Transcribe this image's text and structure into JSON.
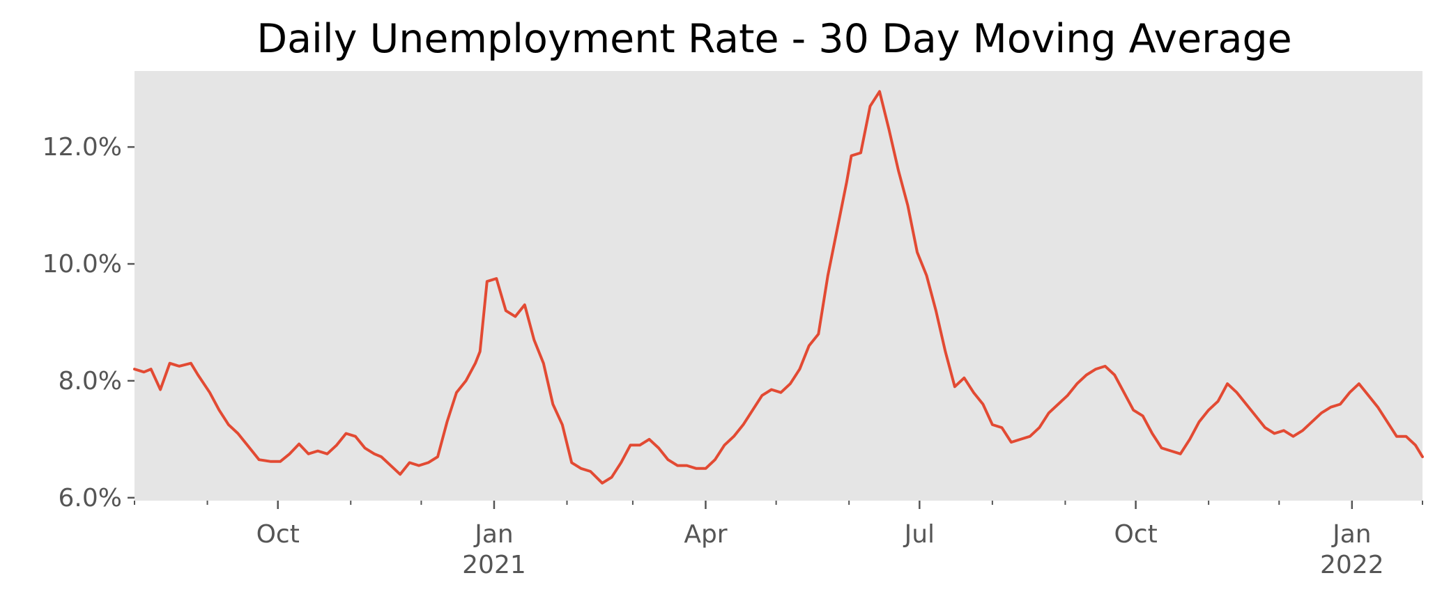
{
  "chart_data": {
    "type": "line",
    "title": "Daily Unemployment Rate - 30 Day Moving Average",
    "xlabel": "",
    "ylabel": "",
    "y_tick_labels": [
      "6.0%",
      "8.0%",
      "10.0%",
      "12.0%"
    ],
    "y_tick_values": [
      6.0,
      8.0,
      10.0,
      12.0
    ],
    "ylim": [
      5.95,
      13.3
    ],
    "xlim": [
      "2020-08-01",
      "2022-01-31"
    ],
    "x_tick_labels": [
      {
        "date": "2020-10-01",
        "label": "Oct",
        "sub": ""
      },
      {
        "date": "2021-01-01",
        "label": "Jan",
        "sub": "2021"
      },
      {
        "date": "2021-04-01",
        "label": "Apr",
        "sub": ""
      },
      {
        "date": "2021-07-01",
        "label": "Jul",
        "sub": ""
      },
      {
        "date": "2021-10-01",
        "label": "Oct",
        "sub": ""
      },
      {
        "date": "2022-01-01",
        "label": "Jan",
        "sub": "2022"
      }
    ],
    "x_minor_ticks": [
      "2020-08-01",
      "2020-09-01",
      "2020-11-01",
      "2020-12-01",
      "2021-02-01",
      "2021-03-01",
      "2021-05-01",
      "2021-06-01",
      "2021-08-01",
      "2021-09-01",
      "2021-11-01",
      "2021-12-01",
      "2022-01-31"
    ],
    "grid": false,
    "legend": "none",
    "colors": {
      "line": "#e24a33",
      "plot_background": "#e5e5e5",
      "text": "#555555"
    },
    "series": [
      {
        "x": [
          "2020-08-01",
          "2020-08-05",
          "2020-08-08",
          "2020-08-12",
          "2020-08-16",
          "2020-08-20",
          "2020-08-25",
          "2020-08-28",
          "2020-09-02",
          "2020-09-06",
          "2020-09-10",
          "2020-09-14",
          "2020-09-18",
          "2020-09-23",
          "2020-09-28",
          "2020-10-02",
          "2020-10-06",
          "2020-10-10",
          "2020-10-14",
          "2020-10-18",
          "2020-10-22",
          "2020-10-26",
          "2020-10-30",
          "2020-11-03",
          "2020-11-07",
          "2020-11-11",
          "2020-11-14",
          "2020-11-18",
          "2020-11-22",
          "2020-11-26",
          "2020-11-30",
          "2020-12-04",
          "2020-12-08",
          "2020-12-12",
          "2020-12-16",
          "2020-12-20",
          "2020-12-24",
          "2020-12-26",
          "2020-12-29",
          "2021-01-02",
          "2021-01-06",
          "2021-01-10",
          "2021-01-14",
          "2021-01-18",
          "2021-01-22",
          "2021-01-26",
          "2021-01-30",
          "2021-02-03",
          "2021-02-07",
          "2021-02-11",
          "2021-02-16",
          "2021-02-20",
          "2021-02-24",
          "2021-02-28",
          "2021-03-04",
          "2021-03-08",
          "2021-03-12",
          "2021-03-16",
          "2021-03-20",
          "2021-03-24",
          "2021-03-28",
          "2021-04-01",
          "2021-04-05",
          "2021-04-09",
          "2021-04-13",
          "2021-04-17",
          "2021-04-21",
          "2021-04-25",
          "2021-04-29",
          "2021-05-03",
          "2021-05-07",
          "2021-05-11",
          "2021-05-15",
          "2021-05-19",
          "2021-05-23",
          "2021-05-27",
          "2021-05-31",
          "2021-06-02",
          "2021-06-06",
          "2021-06-10",
          "2021-06-14",
          "2021-06-18",
          "2021-06-22",
          "2021-06-26",
          "2021-06-30",
          "2021-07-04",
          "2021-07-08",
          "2021-07-12",
          "2021-07-16",
          "2021-07-20",
          "2021-07-24",
          "2021-07-28",
          "2021-08-01",
          "2021-08-05",
          "2021-08-09",
          "2021-08-13",
          "2021-08-17",
          "2021-08-21",
          "2021-08-25",
          "2021-08-29",
          "2021-09-02",
          "2021-09-06",
          "2021-09-10",
          "2021-09-14",
          "2021-09-18",
          "2021-09-22",
          "2021-09-26",
          "2021-09-30",
          "2021-10-04",
          "2021-10-08",
          "2021-10-12",
          "2021-10-16",
          "2021-10-20",
          "2021-10-24",
          "2021-10-28",
          "2021-11-01",
          "2021-11-05",
          "2021-11-09",
          "2021-11-13",
          "2021-11-17",
          "2021-11-21",
          "2021-11-25",
          "2021-11-29",
          "2021-12-03",
          "2021-12-07",
          "2021-12-11",
          "2021-12-15",
          "2021-12-19",
          "2021-12-23",
          "2021-12-27",
          "2021-12-31",
          "2022-01-04",
          "2022-01-08",
          "2022-01-12",
          "2022-01-16",
          "2022-01-20",
          "2022-01-24",
          "2022-01-28",
          "2022-01-31"
        ],
        "y": [
          8.2,
          8.15,
          8.2,
          7.85,
          8.3,
          8.25,
          8.3,
          8.1,
          7.8,
          7.5,
          7.25,
          7.1,
          6.9,
          6.65,
          6.62,
          6.62,
          6.75,
          6.92,
          6.75,
          6.8,
          6.75,
          6.9,
          7.1,
          7.05,
          6.85,
          6.75,
          6.7,
          6.55,
          6.4,
          6.6,
          6.55,
          6.6,
          6.7,
          7.3,
          7.8,
          8.0,
          8.3,
          8.5,
          9.7,
          9.75,
          9.2,
          9.1,
          9.3,
          8.7,
          8.3,
          7.6,
          7.25,
          6.6,
          6.5,
          6.45,
          6.25,
          6.35,
          6.6,
          6.9,
          6.9,
          7.0,
          6.85,
          6.65,
          6.55,
          6.55,
          6.5,
          6.5,
          6.65,
          6.9,
          7.05,
          7.25,
          7.5,
          7.75,
          7.85,
          7.8,
          7.95,
          8.2,
          8.6,
          8.8,
          9.8,
          10.6,
          11.4,
          11.85,
          11.9,
          12.7,
          12.95,
          12.3,
          11.6,
          11.0,
          10.2,
          9.8,
          9.2,
          8.5,
          7.9,
          8.05,
          7.8,
          7.6,
          7.25,
          7.2,
          6.95,
          7.0,
          7.05,
          7.2,
          7.45,
          7.6,
          7.75,
          7.95,
          8.1,
          8.2,
          8.25,
          8.1,
          7.8,
          7.5,
          7.4,
          7.1,
          6.85,
          6.8,
          6.75,
          7.0,
          7.3,
          7.5,
          7.65,
          7.95,
          7.8,
          7.6,
          7.4,
          7.2,
          7.1,
          7.15,
          7.05,
          7.15,
          7.3,
          7.45,
          7.55,
          7.6,
          7.8,
          7.95,
          7.75,
          7.55,
          7.3,
          7.05,
          7.05,
          6.9,
          6.7
        ]
      }
    ]
  }
}
